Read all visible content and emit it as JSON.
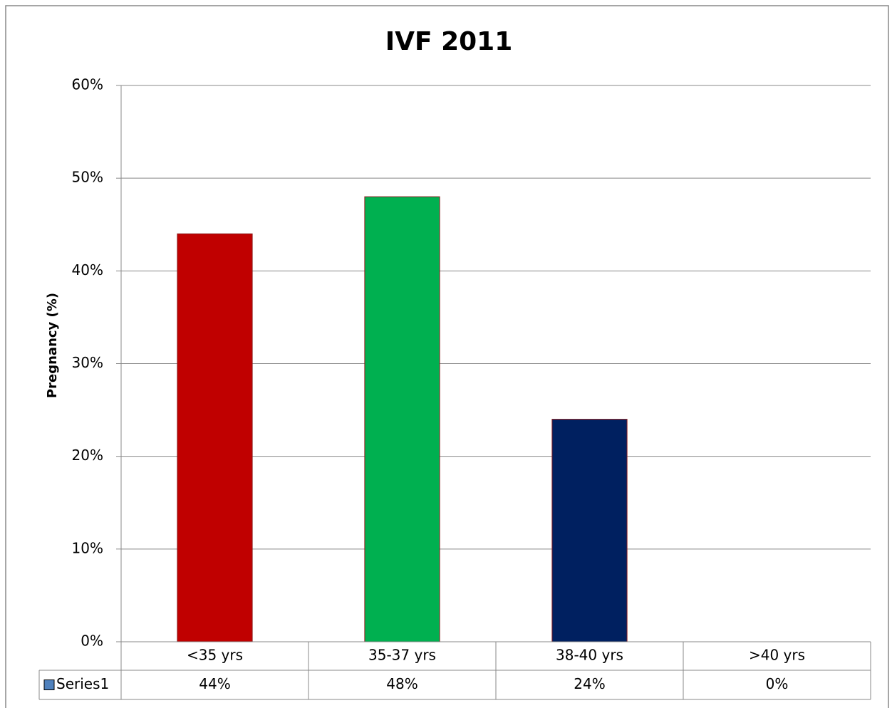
{
  "chart_data": {
    "type": "bar",
    "title": "IVF 2011",
    "y_label": "Pregnancy (%)",
    "categories": [
      "<35 yrs",
      "35-37 yrs",
      "38-40 yrs",
      ">40 yrs"
    ],
    "series": [
      {
        "name": "Series1",
        "color": "#4f81bd",
        "bar_colors": [
          "#c00000",
          "#00b050",
          "#002060",
          "#4f81bd"
        ],
        "values": [
          44,
          48,
          24,
          0
        ],
        "value_labels": [
          "44%",
          "48%",
          "24%",
          "0%"
        ]
      }
    ],
    "ylim": [
      0,
      60
    ],
    "yticks": [
      {
        "value": 0,
        "label": "0%"
      },
      {
        "value": 10,
        "label": "10%"
      },
      {
        "value": 20,
        "label": "20%"
      },
      {
        "value": 30,
        "label": "30%"
      },
      {
        "value": 40,
        "label": "40%"
      },
      {
        "value": 50,
        "label": "50%"
      },
      {
        "value": 60,
        "label": "60%"
      }
    ],
    "grid": true,
    "data_table": true
  }
}
